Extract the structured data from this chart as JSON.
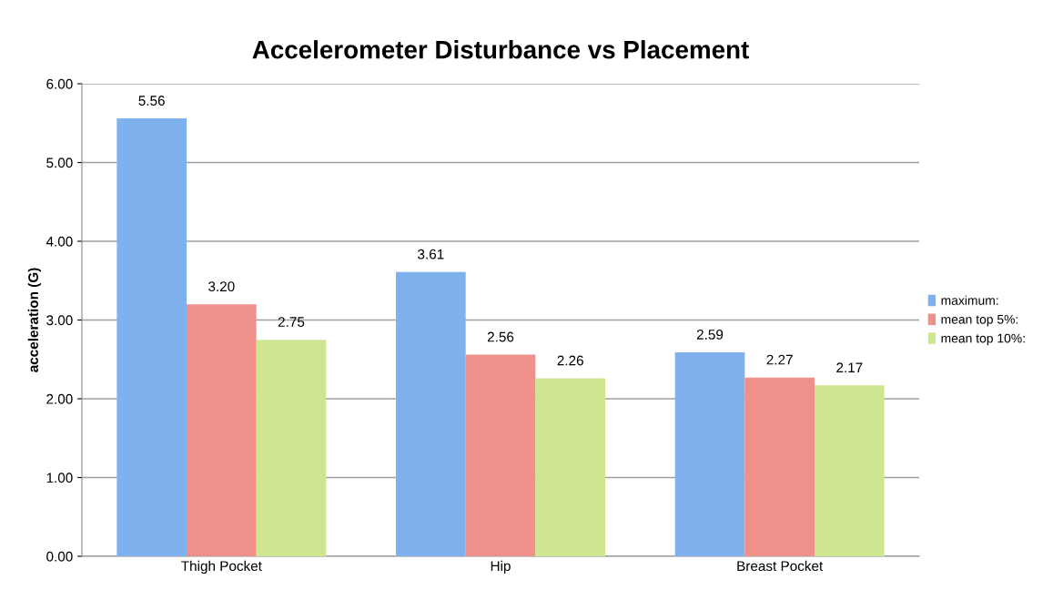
{
  "chart_data": {
    "type": "bar",
    "title": "Accelerometer Disturbance vs Placement",
    "ylabel": "acceleration (G)",
    "categories": [
      "Thigh Pocket",
      "Hip",
      "Breast Pocket"
    ],
    "series": [
      {
        "name": "maximum:",
        "color": "#7fb1ee",
        "values": [
          5.56,
          3.61,
          2.59
        ],
        "value_labels": [
          "5.56",
          "3.61",
          "2.59"
        ]
      },
      {
        "name": "mean top 5%:",
        "color": "#f0908a",
        "values": [
          3.2,
          2.56,
          2.27
        ],
        "value_labels": [
          "3.20",
          "2.56",
          "2.27"
        ]
      },
      {
        "name": "mean top 10%:",
        "color": "#cde68f",
        "values": [
          2.75,
          2.26,
          2.17
        ],
        "value_labels": [
          "2.75",
          "2.26",
          "2.17"
        ]
      }
    ],
    "ylim": [
      0,
      6
    ],
    "yticks": [
      {
        "value": 0,
        "label": "0.00"
      },
      {
        "value": 1,
        "label": "1.00"
      },
      {
        "value": 2,
        "label": "2.00"
      },
      {
        "value": 3,
        "label": "3.00"
      },
      {
        "value": 4,
        "label": "4.00"
      },
      {
        "value": 5,
        "label": "5.00"
      },
      {
        "value": 6,
        "label": "6.00"
      }
    ],
    "grid": "y",
    "legend": "right"
  }
}
